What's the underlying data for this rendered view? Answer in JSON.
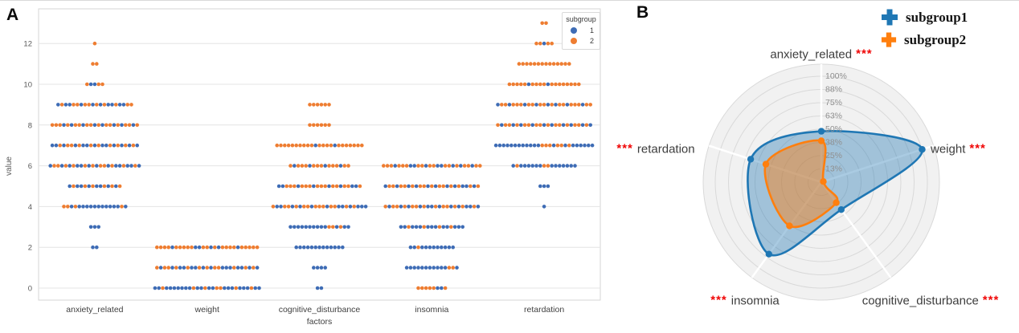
{
  "panel_a": {
    "label": "A"
  },
  "panel_b": {
    "label": "B"
  },
  "colors": {
    "swarm_blue": "#3e6cb5",
    "swarm_orange": "#ee7d31",
    "radar_blue": "#1f77b4",
    "radar_orange": "#ff7f0e",
    "significance_red": "#f00505",
    "grid_gray": "#e4e4e4",
    "ring_gray": "#d9d9d9",
    "tick_text": "#595959"
  },
  "chart_data": [
    {
      "type": "scatter",
      "subtype": "swarm",
      "xlabel": "factors",
      "ylabel": "value",
      "yticks": [
        0,
        2,
        4,
        6,
        8,
        10,
        12
      ],
      "ylim": [
        -0.6,
        13.7
      ],
      "categories": [
        "anxiety_related",
        "weight",
        "cognitive_disturbance",
        "insomnia",
        "retardation"
      ],
      "legend": {
        "title": "subgroup",
        "entries": [
          "1",
          "2"
        ]
      },
      "note": "dots strings: 1 = subgroup1 (blue), 2 = subgroup2 (orange); one char per point at that value",
      "rows": {
        "anxiety_related": [
          {
            "value": 12,
            "dots": "2"
          },
          {
            "value": 11,
            "dots": "22"
          },
          {
            "value": 10,
            "dots": "21122"
          },
          {
            "value": 9,
            "dots": "12112212212121121122"
          },
          {
            "value": 8,
            "dots": "22212122122121221212212"
          },
          {
            "value": 7,
            "dots": "11212212112121121212121"
          },
          {
            "value": 6,
            "dots": "122121211212122121121121"
          },
          {
            "value": 5,
            "dots": "12112121121212"
          },
          {
            "value": 4,
            "dots": "22121111111111121"
          },
          {
            "value": 3,
            "dots": "111"
          },
          {
            "value": 2,
            "dots": "11"
          }
        ],
        "weight": [
          {
            "value": 2,
            "dots": "222212222211221212222122222"
          },
          {
            "value": 1,
            "dots": "212212112112121221112112121"
          },
          {
            "value": 0,
            "dots": "1121111111211211221112111211"
          }
        ],
        "cognitive_disturbance": [
          {
            "value": 9,
            "dots": "222222"
          },
          {
            "value": 8,
            "dots": "222222"
          },
          {
            "value": 7,
            "dots": "22222222221222212222222"
          },
          {
            "value": 6,
            "dots": "2122212221222122"
          },
          {
            "value": 5,
            "dots": "1122212221222122122112"
          },
          {
            "value": 4,
            "dots": "2112212122122212211212111"
          },
          {
            "value": 3,
            "dots": "1111111111221211"
          },
          {
            "value": 2,
            "dots": "1111111111111"
          },
          {
            "value": 1,
            "dots": "1111"
          },
          {
            "value": 0,
            "dots": "11"
          }
        ],
        "insomnia": [
          {
            "value": 6,
            "dots": "22212221122122112212122122"
          },
          {
            "value": 5,
            "dots": "1221221212212122121211212"
          },
          {
            "value": 4,
            "dots": "2122121221211212212121121"
          },
          {
            "value": 3,
            "dots": "11211121112112111"
          },
          {
            "value": 2,
            "dots": "112111111111"
          },
          {
            "value": 1,
            "dots": "11111111111221"
          },
          {
            "value": 0,
            "dots": "22222112"
          }
        ],
        "retardation": [
          {
            "value": 13,
            "dots": "22"
          },
          {
            "value": 12,
            "dots": "22122"
          },
          {
            "value": 11,
            "dots": "22222222222222"
          },
          {
            "value": 10,
            "dots": "2222212222122222222"
          },
          {
            "value": 9,
            "dots": "1221222122122121221222122"
          },
          {
            "value": 8,
            "dots": "2122121221221212212122121"
          },
          {
            "value": 7,
            "dots": "11111111111122212212111111"
          },
          {
            "value": 6,
            "dots": "12111111221111111"
          },
          {
            "value": 5,
            "dots": "111"
          },
          {
            "value": 4,
            "dots": "1"
          }
        ]
      }
    },
    {
      "type": "radar",
      "ring_labels": [
        "100%",
        "88%",
        "75%",
        "63%",
        "50%",
        "38%",
        "25%",
        "13%"
      ],
      "ring_pcts": [
        100,
        87.5,
        75,
        62.5,
        50,
        37.5,
        25,
        12.5
      ],
      "axes": [
        {
          "label": "anxiety_related",
          "stars": "***",
          "stars_side": "after"
        },
        {
          "label": "weight",
          "stars": "***",
          "stars_side": "after"
        },
        {
          "label": "cognitive_disturbance",
          "stars": "***",
          "stars_side": "after"
        },
        {
          "label": "insomnia",
          "stars": "***",
          "stars_side": "before"
        },
        {
          "label": "retardation",
          "stars": "***",
          "stars_side": "before"
        }
      ],
      "series": [
        {
          "name": "subgroup1",
          "color": "#1f77b4",
          "values_pct": [
            48,
            100,
            32,
            84,
            70
          ]
        },
        {
          "name": "subgroup2",
          "color": "#ff7f0e",
          "values_pct": [
            39,
            2,
            24,
            51,
            55
          ]
        }
      ],
      "legend_position": "top-right"
    }
  ]
}
